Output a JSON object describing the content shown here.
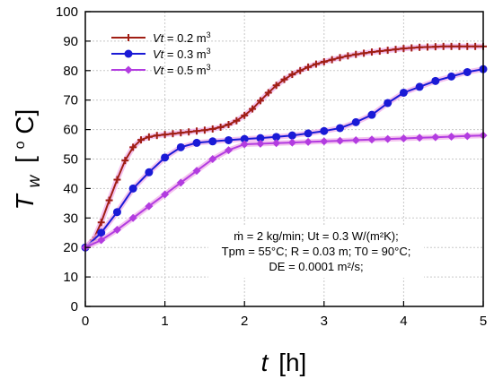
{
  "chart_data": {
    "type": "line",
    "xlabel": {
      "var": "t",
      "unit": "[h]"
    },
    "ylabel": {
      "var": "T",
      "sub": "w",
      "unit_open": "[",
      "unit_sup": "o",
      "unit_rest": "C]"
    },
    "xlim": [
      0,
      5
    ],
    "ylim": [
      0,
      100
    ],
    "xticks": [
      0,
      1,
      2,
      3,
      4,
      5
    ],
    "yticks": [
      0,
      10,
      20,
      30,
      40,
      50,
      60,
      70,
      80,
      90,
      100
    ],
    "grid": true,
    "legend_position": "top-left",
    "series": [
      {
        "name_var": "Vt",
        "name_rest": " = 0.2 m",
        "name_sup": "3",
        "color": "#a01e14",
        "marker": "plus",
        "x": [
          0,
          0.1,
          0.2,
          0.3,
          0.4,
          0.5,
          0.6,
          0.7,
          0.8,
          0.9,
          1.0,
          1.1,
          1.2,
          1.3,
          1.4,
          1.5,
          1.6,
          1.7,
          1.8,
          1.9,
          2.0,
          2.1,
          2.2,
          2.3,
          2.4,
          2.5,
          2.6,
          2.7,
          2.8,
          2.9,
          3.0,
          3.1,
          3.2,
          3.3,
          3.4,
          3.5,
          3.6,
          3.7,
          3.8,
          3.9,
          4.0,
          4.1,
          4.2,
          4.3,
          4.4,
          4.5,
          4.6,
          4.7,
          4.8,
          4.9,
          5.0
        ],
        "y": [
          20.0,
          22.5,
          28.5,
          36.0,
          43.0,
          49.5,
          54.0,
          56.5,
          57.5,
          58.0,
          58.3,
          58.6,
          58.9,
          59.2,
          59.5,
          59.8,
          60.2,
          60.8,
          61.7,
          63.0,
          64.8,
          67.0,
          69.8,
          72.5,
          75.0,
          77.0,
          78.7,
          80.0,
          81.2,
          82.2,
          83.0,
          83.7,
          84.4,
          85.0,
          85.5,
          85.9,
          86.3,
          86.6,
          86.9,
          87.2,
          87.5,
          87.7,
          87.9,
          88.0,
          88.1,
          88.2,
          88.2,
          88.2,
          88.2,
          88.2,
          88.2
        ]
      },
      {
        "name_var": "Vt",
        "name_rest": " = 0.3 m",
        "name_sup": "3",
        "color": "#1a1ad6",
        "marker": "circle",
        "x": [
          0,
          0.2,
          0.4,
          0.6,
          0.8,
          1.0,
          1.2,
          1.4,
          1.6,
          1.8,
          2.0,
          2.2,
          2.4,
          2.6,
          2.8,
          3.0,
          3.2,
          3.4,
          3.6,
          3.8,
          4.0,
          4.2,
          4.4,
          4.6,
          4.8,
          5.0
        ],
        "y": [
          20.0,
          25.0,
          32.0,
          40.0,
          45.5,
          50.5,
          54.0,
          55.5,
          56.0,
          56.4,
          56.8,
          57.1,
          57.5,
          58.0,
          58.7,
          59.5,
          60.5,
          62.5,
          65.0,
          69.0,
          72.5,
          74.5,
          76.5,
          78.0,
          79.5,
          80.5
        ]
      },
      {
        "name_var": "Vt",
        "name_rest": " = 0.5 m",
        "name_sup": "3",
        "color": "#b23ce0",
        "marker": "diamond",
        "x": [
          0,
          0.2,
          0.4,
          0.6,
          0.8,
          1.0,
          1.2,
          1.4,
          1.6,
          1.8,
          2.0,
          2.2,
          2.4,
          2.6,
          2.8,
          3.0,
          3.2,
          3.4,
          3.6,
          3.8,
          4.0,
          4.2,
          4.4,
          4.6,
          4.8,
          5.0
        ],
        "y": [
          20.0,
          22.5,
          26.0,
          30.0,
          34.0,
          38.0,
          42.0,
          46.0,
          50.0,
          53.0,
          55.0,
          55.2,
          55.4,
          55.6,
          55.8,
          56.0,
          56.2,
          56.4,
          56.6,
          56.8,
          57.0,
          57.2,
          57.4,
          57.6,
          57.8,
          58.0
        ]
      }
    ],
    "annotations": [
      "ṁ = 2 kg/min;  Ut = 0.3 W/(m²K);",
      "Tpm = 55°C; R = 0.03 m; T0 = 90°C;",
      "DE = 0.0001 m²/s;"
    ]
  }
}
